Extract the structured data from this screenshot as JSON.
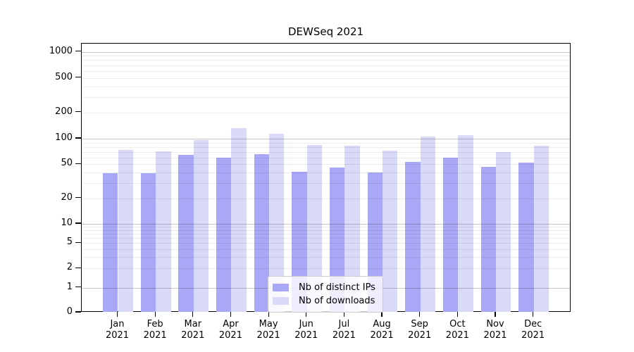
{
  "chart_data": {
    "type": "bar",
    "title": "DEWSeq 2021",
    "categories": [
      "Jan",
      "Feb",
      "Mar",
      "Apr",
      "May",
      "Jun",
      "Jul",
      "Aug",
      "Sep",
      "Oct",
      "Nov",
      "Dec"
    ],
    "year_label": "2021",
    "series": [
      {
        "name": "Nb of distinct IPs",
        "color": "#a8a8f6",
        "values": [
          39,
          39,
          65,
          60,
          66,
          41,
          46,
          40,
          53,
          60,
          47,
          52
        ]
      },
      {
        "name": "Nb of downloads",
        "color": "#d9d9f8",
        "values": [
          74,
          71,
          96,
          132,
          115,
          84,
          83,
          72,
          105,
          110,
          69,
          82
        ]
      }
    ],
    "xlabel": "",
    "ylabel": "",
    "y_axis": {
      "scale": "symlog",
      "ticks": [
        0,
        1,
        2,
        5,
        10,
        20,
        50,
        100,
        200,
        500,
        1000
      ],
      "ylim": [
        0,
        1200
      ]
    },
    "grid": {
      "major_color": "#c8c8c8",
      "minor_color": "#ececec",
      "major_at": [
        1,
        10,
        100,
        1000
      ]
    },
    "legend": {
      "position": "bottom-center"
    }
  }
}
